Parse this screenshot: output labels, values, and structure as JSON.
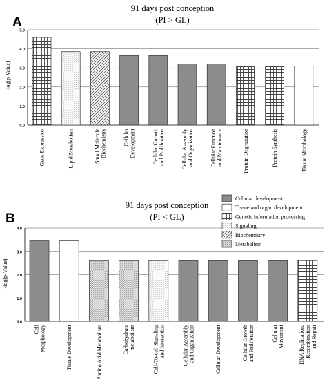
{
  "chart_data": [
    {
      "type": "bar",
      "panel_label": "A",
      "title_line1": "91 days post conception",
      "title_line2": "(PI > GL)",
      "ylabel": "-log(p-Value)",
      "ylim": [
        0,
        5
      ],
      "yticks": [
        "0.0",
        "1.0",
        "2.0",
        "3.0",
        "4.0",
        "5.0"
      ],
      "categories": [
        [
          "Gene Expression"
        ],
        [
          "Lipid Metabolism"
        ],
        [
          "Small Molecule",
          "Biochemistry"
        ],
        [
          "Cellular",
          "Development"
        ],
        [
          "Cellular Growth",
          "and Proliferation"
        ],
        [
          "Cellular Assembly",
          "and Organization"
        ],
        [
          "Cellular Function",
          "and Maintenance"
        ],
        [
          "Protein Degradation"
        ],
        [
          "Protein Synthesis"
        ],
        [
          "Tissue Morphology"
        ]
      ],
      "values": [
        4.6,
        3.85,
        3.85,
        3.65,
        3.65,
        3.2,
        3.2,
        3.1,
        3.1,
        3.1
      ],
      "groups": [
        "genetic",
        "signaling",
        "biochemistry",
        "cellular",
        "cellular",
        "cellular",
        "cellular",
        "genetic",
        "genetic",
        "tissue"
      ]
    },
    {
      "type": "bar",
      "panel_label": "B",
      "title_line1": "91 days post conception",
      "title_line2": "(PI < GL)",
      "ylabel": "-log(p-Value)",
      "ylim": [
        0,
        4
      ],
      "yticks": [
        "0.0",
        "1.0",
        "2.0",
        "3.0",
        "4.0"
      ],
      "categories": [
        [
          "Cell",
          "Morphology"
        ],
        [
          "Tissue Development"
        ],
        [
          "Amino Acid Metabolism"
        ],
        [
          "Carbohydrate",
          "metabolism"
        ],
        [
          "Cell-To-cell Signaling",
          "and Interaction"
        ],
        [
          "Cellular Assembly",
          "and Organization"
        ],
        [
          "Cellular Development"
        ],
        [
          "Cellular Growth",
          "and Proliferation"
        ],
        [
          "Cellular",
          "Movement"
        ],
        [
          "DNA Replication,",
          "Recombination",
          "and Repair"
        ]
      ],
      "values": [
        3.45,
        3.45,
        2.6,
        2.6,
        2.6,
        2.6,
        2.6,
        2.6,
        2.6,
        2.6
      ],
      "groups": [
        "cellular",
        "tissue",
        "metabolism",
        "metabolism",
        "signaling",
        "cellular",
        "cellular",
        "cellular",
        "cellular",
        "genetic"
      ]
    }
  ],
  "legend": [
    {
      "key": "cellular",
      "label": "Cellular development"
    },
    {
      "key": "tissue",
      "label": "Tissue and organ development"
    },
    {
      "key": "genetic",
      "label": "Genetic information processing"
    },
    {
      "key": "signaling",
      "label": "Signaling"
    },
    {
      "key": "biochemistry",
      "label": "Biochemistry"
    },
    {
      "key": "metabolism",
      "label": "Metabolism"
    }
  ],
  "colors": {
    "cellular": "#8c8c8c",
    "tissue": "#ffffff",
    "grid_line": "#555555",
    "edge": "#333333"
  }
}
